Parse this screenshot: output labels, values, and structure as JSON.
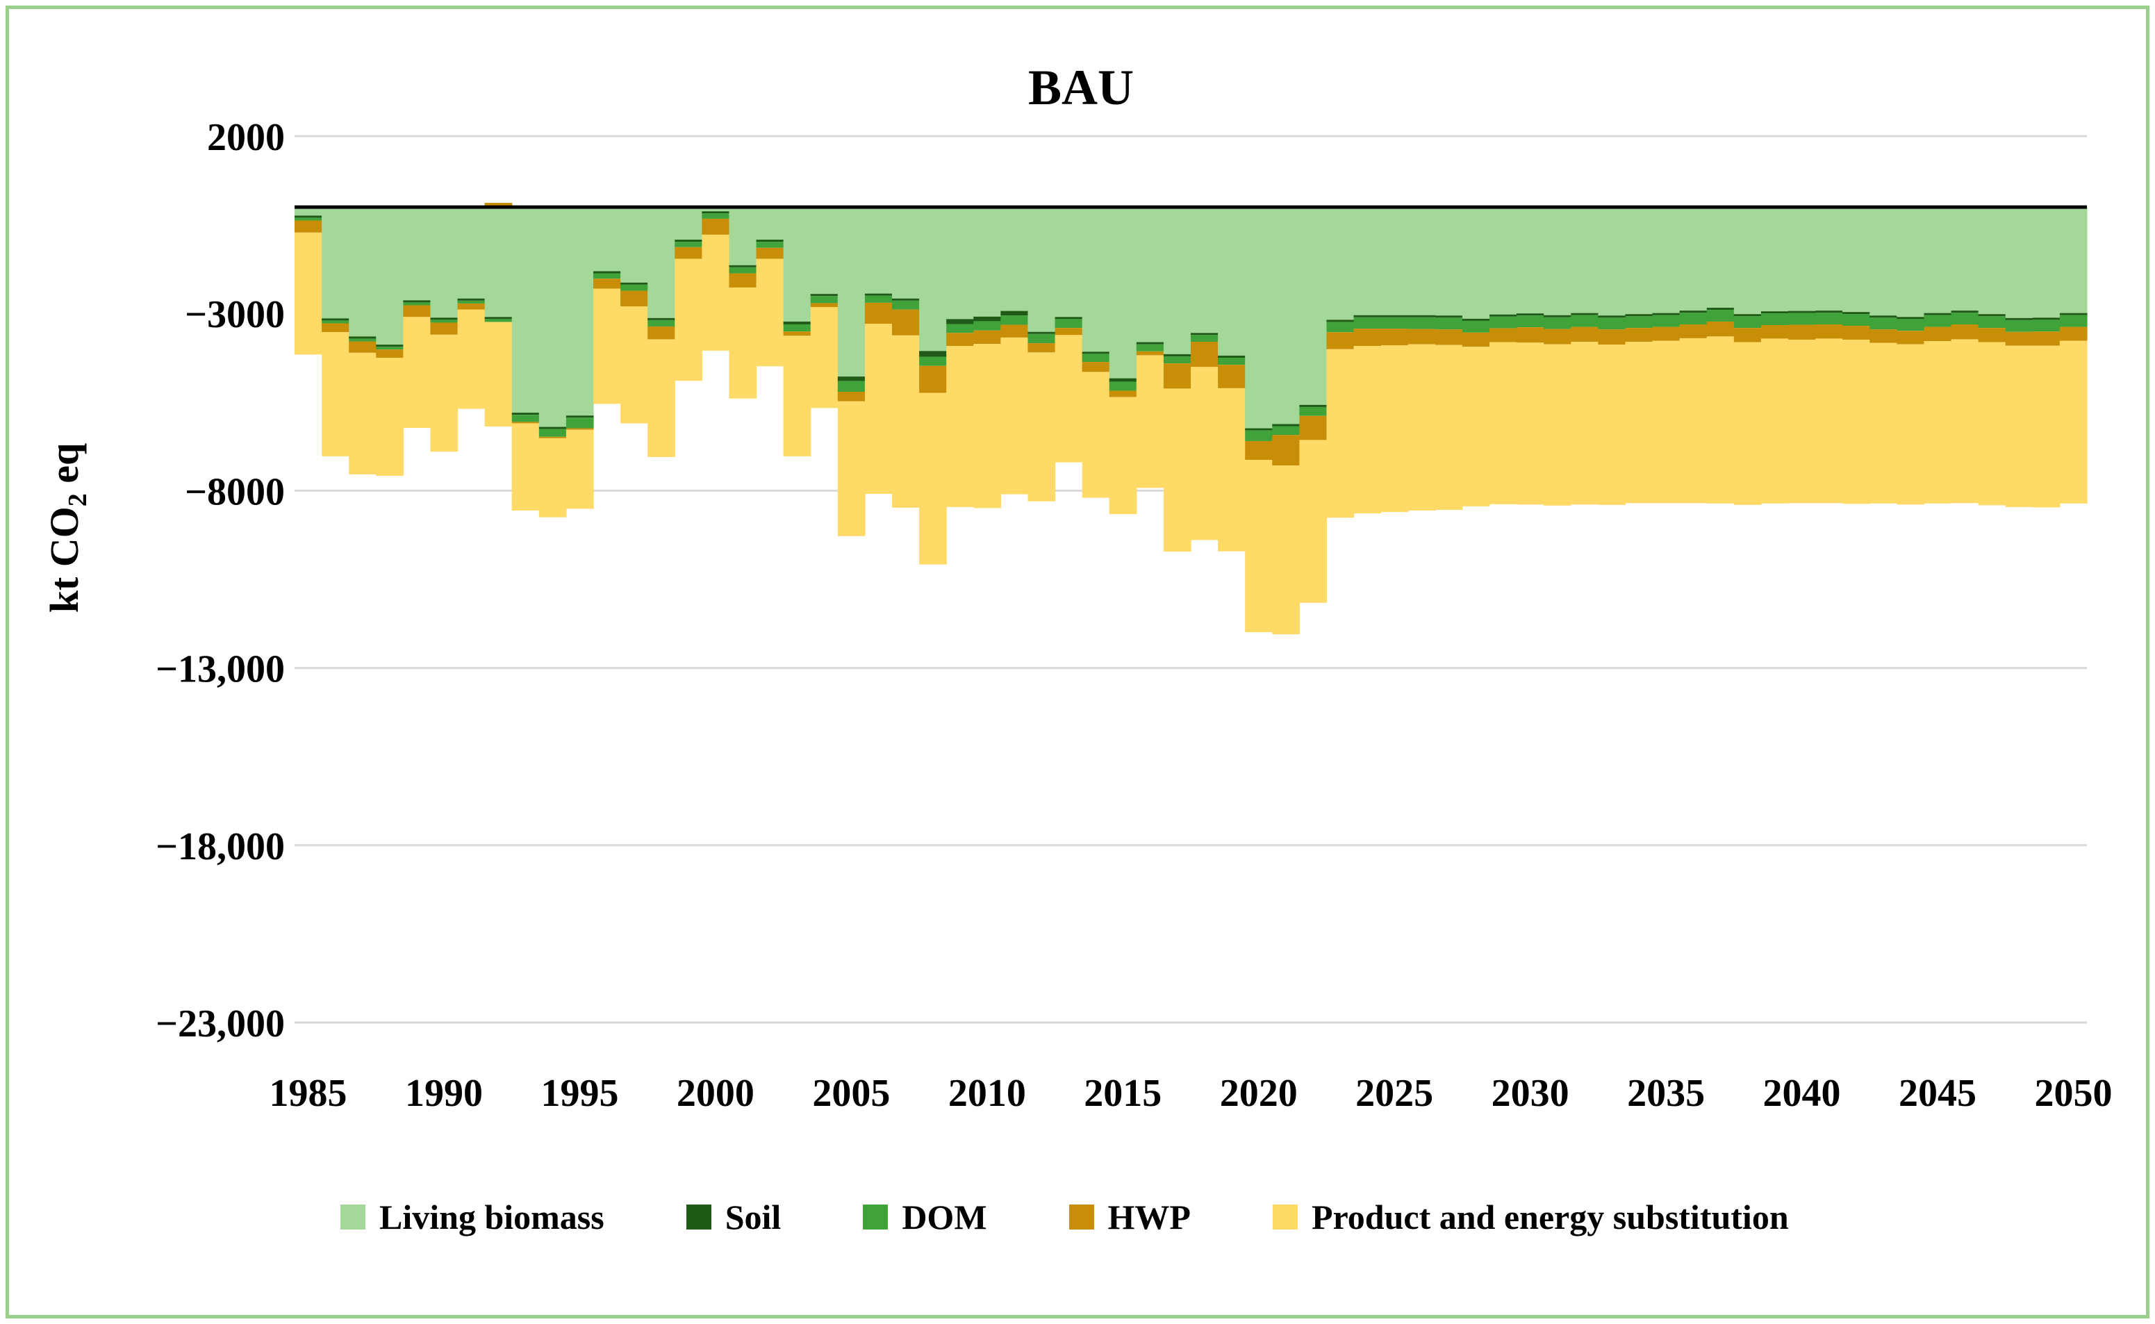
{
  "chart_data": {
    "type": "bar",
    "stacked": true,
    "title": "BAU",
    "xlabel": "",
    "ylabel": "kt CO2 eq",
    "ylabel_main": "kt CO",
    "ylabel_sub": "2",
    "ylabel_tail": " eq",
    "ylim": [
      -23000,
      2000
    ],
    "yticks": [
      2000,
      -3000,
      -8000,
      -13000,
      -18000,
      -23000
    ],
    "ytick_labels": [
      "2000",
      "−3000",
      "−8000",
      "−13,000",
      "−18,000",
      "−23,000"
    ],
    "xtick_labels": [
      "1985",
      "1990",
      "1995",
      "2000",
      "2005",
      "2010",
      "2015",
      "2020",
      "2025",
      "2030",
      "2035",
      "2040",
      "2045",
      "2050"
    ],
    "legend_position": "bottom",
    "colors": {
      "living_biomass": "#a3d899",
      "soil": "#1f5a17",
      "dom": "#3fa33a",
      "hwp": "#c88e08",
      "substitution": "#ffda66",
      "zero_line": "#000000",
      "grid": "#d9d9d9",
      "frame": "#9bcf8c"
    },
    "categories": [
      "1985",
      "1986",
      "1987",
      "1988",
      "1989",
      "1990",
      "1991",
      "1992",
      "1993",
      "1994",
      "1995",
      "1996",
      "1997",
      "1998",
      "1999",
      "2000",
      "2001",
      "2002",
      "2003",
      "2004",
      "2005",
      "2006",
      "2007",
      "2008",
      "2009",
      "2010",
      "2011",
      "2012",
      "2013",
      "2014",
      "2015",
      "2016",
      "2017",
      "2018",
      "2019",
      "2020",
      "2021",
      "2022",
      "2023",
      "2024",
      "2025",
      "2026",
      "2027",
      "2028",
      "2029",
      "2030",
      "2031",
      "2032",
      "2033",
      "2034",
      "2035",
      "2036",
      "2037",
      "2038",
      "2039",
      "2040",
      "2041",
      "2042",
      "2043",
      "2044",
      "2045",
      "2046",
      "2047",
      "2048",
      "2049",
      "2050"
    ],
    "series": [
      {
        "name": "Living biomass",
        "key": "living_biomass",
        "values": [
          -240,
          -3140,
          -3650,
          -3880,
          -2630,
          -3120,
          -2580,
          -3100,
          -5800,
          -6200,
          -5880,
          -1810,
          -2130,
          -3130,
          -920,
          -120,
          -1640,
          -920,
          -3230,
          -2450,
          -4780,
          -2440,
          -2580,
          -4060,
          -3160,
          -3090,
          -2930,
          -3520,
          -3100,
          -4080,
          -4830,
          -3810,
          -4150,
          -3550,
          -4190,
          -6240,
          -6120,
          -5580,
          -3180,
          -3050,
          -3050,
          -3050,
          -3060,
          -3150,
          -3030,
          -3000,
          -3050,
          -2990,
          -3060,
          -3020,
          -2990,
          -2920,
          -2840,
          -3020,
          -2940,
          -2930,
          -2920,
          -2960,
          -3060,
          -3100,
          -2990,
          -2920,
          -3020,
          -3130,
          -3120,
          -2990
        ]
      },
      {
        "name": "Soil",
        "key": "soil",
        "values": [
          -60,
          -60,
          -60,
          -60,
          -60,
          -60,
          -60,
          -60,
          -60,
          -60,
          -60,
          -60,
          -60,
          -60,
          -60,
          -60,
          -60,
          -60,
          -80,
          -60,
          -130,
          -60,
          -60,
          -160,
          -140,
          -130,
          -130,
          -60,
          -60,
          -60,
          -100,
          -60,
          -60,
          -60,
          -60,
          -60,
          -60,
          -60,
          -60,
          -60,
          -60,
          -60,
          -60,
          -60,
          -60,
          -60,
          -60,
          -60,
          -60,
          -60,
          -60,
          -60,
          -60,
          -60,
          -60,
          -60,
          -60,
          -60,
          -60,
          -60,
          -60,
          -60,
          -60,
          -60,
          -60,
          -60
        ]
      },
      {
        "name": "DOM",
        "key": "dom",
        "values": [
          -80,
          -80,
          -80,
          -80,
          -80,
          -80,
          -80,
          -80,
          -200,
          -220,
          -300,
          -150,
          -170,
          -180,
          -150,
          -150,
          -170,
          -170,
          -200,
          -200,
          -300,
          -200,
          -250,
          -260,
          -250,
          -260,
          -260,
          -260,
          -250,
          -230,
          -250,
          -200,
          -200,
          -190,
          -200,
          -300,
          -250,
          -250,
          -290,
          -320,
          -320,
          -330,
          -330,
          -330,
          -330,
          -330,
          -330,
          -330,
          -330,
          -330,
          -330,
          -330,
          -330,
          -330,
          -330,
          -330,
          -330,
          -330,
          -330,
          -330,
          -330,
          -330,
          -330,
          -330,
          -330,
          -330
        ]
      },
      {
        "name": "HWP",
        "key": "hwp",
        "values": [
          -340,
          -250,
          -320,
          -230,
          -330,
          -340,
          -170,
          120,
          -40,
          -40,
          -40,
          -280,
          -440,
          -360,
          -330,
          -450,
          -400,
          -310,
          -120,
          -110,
          -270,
          -590,
          -730,
          -760,
          -370,
          -380,
          -360,
          -260,
          -200,
          -280,
          -180,
          -110,
          -710,
          -710,
          -660,
          -530,
          -860,
          -680,
          -480,
          -490,
          -470,
          -430,
          -440,
          -400,
          -390,
          -430,
          -430,
          -420,
          -430,
          -390,
          -390,
          -390,
          -420,
          -400,
          -380,
          -420,
          -400,
          -390,
          -380,
          -380,
          -400,
          -420,
          -400,
          -390,
          -400,
          -390
        ]
      },
      {
        "name": "Product and energy substitution",
        "key": "substitution",
        "values": [
          -3440,
          -3500,
          -3430,
          -3330,
          -3130,
          -3300,
          -2800,
          -2950,
          -2460,
          -2230,
          -2230,
          -3250,
          -3300,
          -3320,
          -3440,
          -3270,
          -3130,
          -3030,
          -3400,
          -2850,
          -3800,
          -4800,
          -4860,
          -4840,
          -4540,
          -4630,
          -4420,
          -4200,
          -3590,
          -3550,
          -3300,
          -3740,
          -4600,
          -4880,
          -4600,
          -4860,
          -4760,
          -4590,
          -4750,
          -4720,
          -4700,
          -4690,
          -4650,
          -4500,
          -4570,
          -4570,
          -4550,
          -4590,
          -4520,
          -4550,
          -4580,
          -4650,
          -4710,
          -4590,
          -4650,
          -4610,
          -4640,
          -4630,
          -4530,
          -4520,
          -4580,
          -4620,
          -4600,
          -4550,
          -4560,
          -4590
        ]
      }
    ]
  },
  "legend": {
    "items": [
      {
        "label": "Living biomass",
        "key": "living_biomass"
      },
      {
        "label": "Soil",
        "key": "soil"
      },
      {
        "label": "DOM",
        "key": "dom"
      },
      {
        "label": "HWP",
        "key": "hwp"
      },
      {
        "label": "Product and energy substitution",
        "key": "substitution"
      }
    ]
  }
}
